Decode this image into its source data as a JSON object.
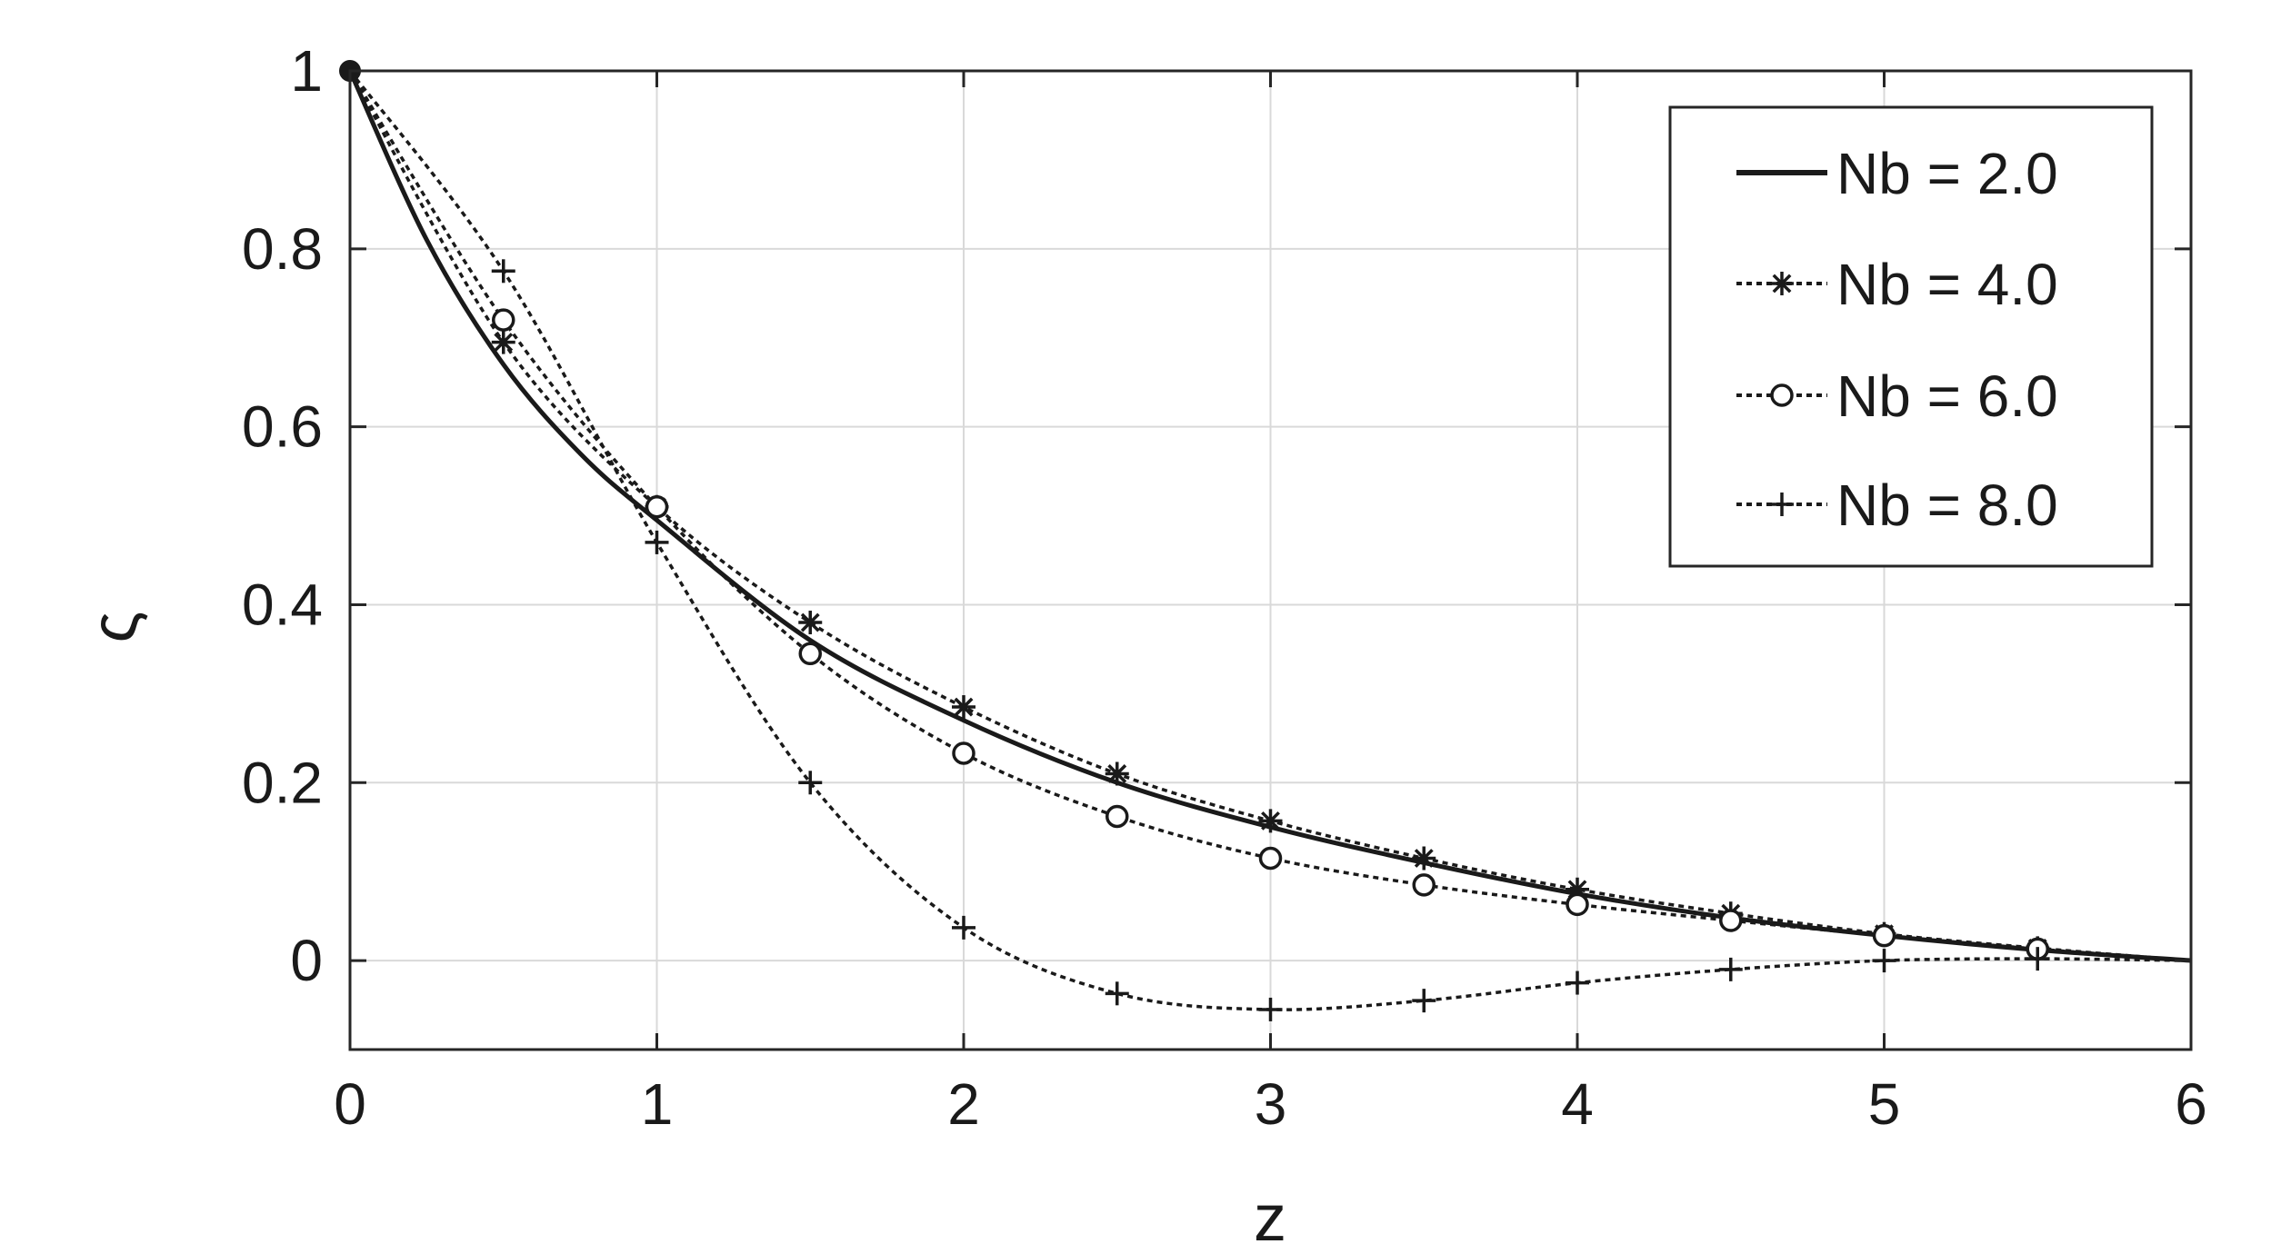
{
  "chart_data": {
    "type": "line",
    "title": "",
    "xlabel": "z",
    "ylabel": "ς",
    "xlim": [
      0,
      6
    ],
    "ylim": [
      -0.1,
      1
    ],
    "xticks": [
      0,
      1,
      2,
      3,
      4,
      5,
      6
    ],
    "yticks": [
      0,
      0.2,
      0.4,
      0.6,
      0.8,
      1
    ],
    "xtick_labels": [
      "0",
      "1",
      "2",
      "3",
      "4",
      "5",
      "6"
    ],
    "ytick_labels": [
      "0",
      "0.2",
      "0.4",
      "0.6",
      "0.8",
      "1"
    ],
    "grid": true,
    "legend_position": "top-right",
    "colors": {
      "line": "#1a1a1a",
      "grid": "#d9d9d9",
      "axes": "#262626"
    },
    "series": [
      {
        "name": "Nb = 2.0",
        "line_style": "solid",
        "marker": "none",
        "x": [
          0,
          0.25,
          0.5,
          0.75,
          1,
          1.5,
          2,
          2.5,
          3,
          3.5,
          4,
          4.5,
          5,
          5.5,
          6
        ],
        "y": [
          1,
          0.81,
          0.67,
          0.57,
          0.495,
          0.36,
          0.27,
          0.2,
          0.15,
          0.11,
          0.075,
          0.048,
          0.028,
          0.012,
          0
        ]
      },
      {
        "name": "Nb = 4.0",
        "line_style": "dotted",
        "marker": "asterisk",
        "x": [
          0,
          0.5,
          1,
          1.5,
          2,
          2.5,
          3,
          3.5,
          4,
          4.5,
          5,
          5.5,
          6
        ],
        "y": [
          1,
          0.695,
          0.51,
          0.38,
          0.285,
          0.21,
          0.157,
          0.115,
          0.08,
          0.053,
          0.03,
          0.014,
          0
        ]
      },
      {
        "name": "Nb = 6.0",
        "line_style": "dotted",
        "marker": "circle",
        "x": [
          0,
          0.5,
          1,
          1.5,
          2,
          2.5,
          3,
          3.5,
          4,
          4.5,
          5,
          5.5,
          6
        ],
        "y": [
          1,
          0.72,
          0.51,
          0.345,
          0.233,
          0.162,
          0.115,
          0.085,
          0.063,
          0.045,
          0.028,
          0.013,
          0
        ]
      },
      {
        "name": "Nb = 8.0",
        "line_style": "dotted",
        "marker": "plus",
        "x": [
          0,
          0.5,
          1,
          1.5,
          2,
          2.5,
          3,
          3.5,
          4,
          4.5,
          5,
          5.5,
          6
        ],
        "y": [
          1,
          0.775,
          0.47,
          0.2,
          0.037,
          -0.037,
          -0.055,
          -0.045,
          -0.025,
          -0.01,
          0,
          0.002,
          0
        ]
      }
    ]
  }
}
